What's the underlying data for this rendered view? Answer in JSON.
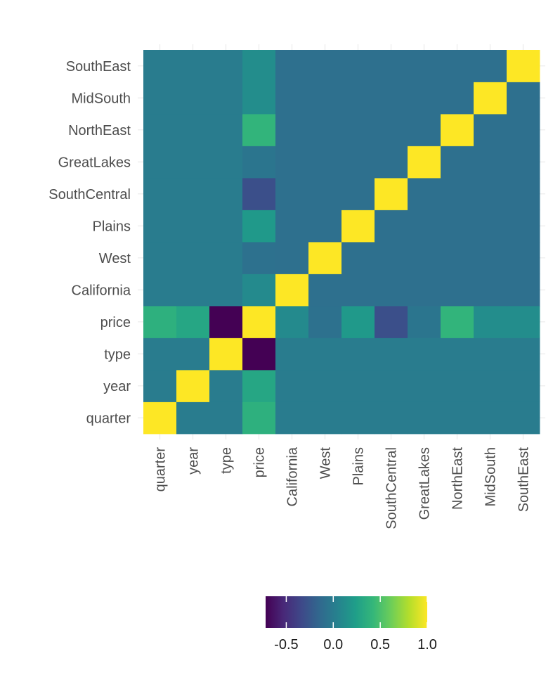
{
  "chart_data": {
    "type": "heatmap",
    "x_categories": [
      "quarter",
      "year",
      "type",
      "price",
      "California",
      "West",
      "Plains",
      "SouthCentral",
      "GreatLakes",
      "NorthEast",
      "MidSouth",
      "SouthEast"
    ],
    "y_categories": [
      "quarter",
      "year",
      "type",
      "price",
      "California",
      "West",
      "Plains",
      "SouthCentral",
      "GreatLakes",
      "NorthEast",
      "MidSouth",
      "SouthEast"
    ],
    "values": [
      [
        1.0,
        0.0,
        0.0,
        0.37,
        0.0,
        0.0,
        0.0,
        0.0,
        0.0,
        0.0,
        0.0,
        0.0
      ],
      [
        0.0,
        1.0,
        0.0,
        0.3,
        0.0,
        0.0,
        0.0,
        0.0,
        0.0,
        0.0,
        0.0,
        0.0
      ],
      [
        0.0,
        0.0,
        1.0,
        -0.72,
        0.0,
        0.0,
        0.0,
        0.0,
        0.0,
        0.0,
        0.0,
        0.0
      ],
      [
        0.37,
        0.3,
        -0.72,
        1.0,
        0.1,
        -0.08,
        0.2,
        -0.3,
        -0.05,
        0.4,
        0.12,
        0.12
      ],
      [
        0.0,
        0.0,
        0.0,
        0.1,
        1.0,
        -0.09,
        -0.09,
        -0.09,
        -0.09,
        -0.09,
        -0.09,
        -0.09
      ],
      [
        0.0,
        0.0,
        0.0,
        -0.08,
        -0.09,
        1.0,
        -0.09,
        -0.09,
        -0.09,
        -0.09,
        -0.09,
        -0.09
      ],
      [
        0.0,
        0.0,
        0.0,
        0.2,
        -0.09,
        -0.09,
        1.0,
        -0.09,
        -0.09,
        -0.09,
        -0.09,
        -0.09
      ],
      [
        0.0,
        0.0,
        0.0,
        -0.3,
        -0.09,
        -0.09,
        -0.09,
        1.0,
        -0.09,
        -0.09,
        -0.09,
        -0.09
      ],
      [
        0.0,
        0.0,
        0.0,
        -0.05,
        -0.09,
        -0.09,
        -0.09,
        -0.09,
        1.0,
        -0.09,
        -0.09,
        -0.09
      ],
      [
        0.0,
        0.0,
        0.0,
        0.4,
        -0.09,
        -0.09,
        -0.09,
        -0.09,
        -0.09,
        1.0,
        -0.09,
        -0.09
      ],
      [
        0.0,
        0.0,
        0.0,
        0.12,
        -0.09,
        -0.09,
        -0.09,
        -0.09,
        -0.09,
        -0.09,
        1.0,
        -0.09
      ],
      [
        0.0,
        0.0,
        0.0,
        0.12,
        -0.09,
        -0.09,
        -0.09,
        -0.09,
        -0.09,
        -0.09,
        -0.09,
        1.0
      ]
    ],
    "color_scale": "viridis",
    "color_range": [
      -0.72,
      1.0
    ],
    "legend": {
      "position": "bottom",
      "ticks": [
        -0.5,
        0.0,
        0.5,
        1.0
      ],
      "tick_labels": [
        "-0.5",
        "0.0",
        "0.5",
        "1.0"
      ]
    },
    "grid": true
  }
}
